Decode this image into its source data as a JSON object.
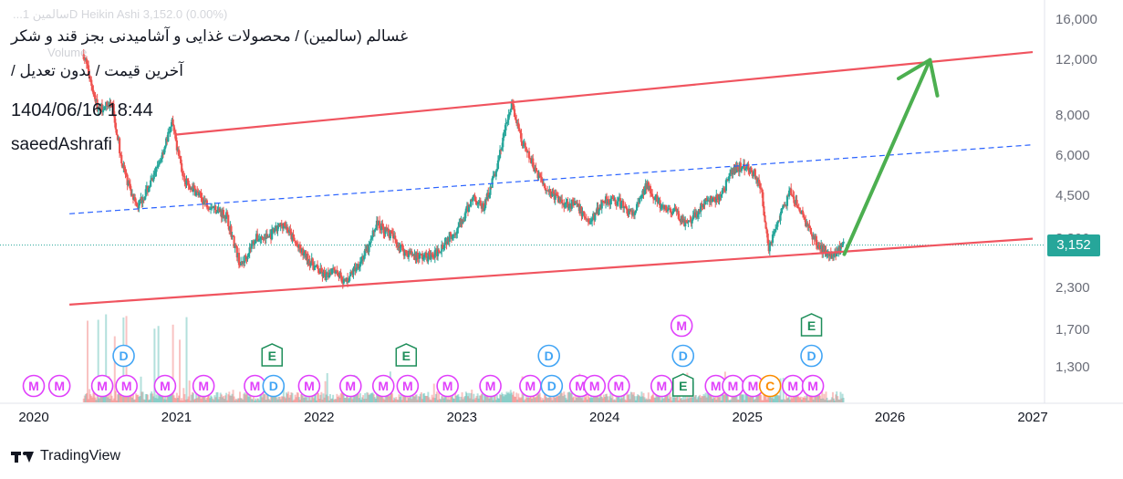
{
  "header": {
    "title": "غسالم (سالمین) / محصولات غذایی و آشامیدنی بجز قند و شکر",
    "subtitle": "آخرین قیمت / بدون تعدیل /",
    "datetime": "1404/06/16 18:44",
    "author": "saeedAshrafi",
    "ghost_legend": "...سالمین 1D  Heikin Ashi  3,152.0 (0.00%)",
    "ghost_volume": "Volume"
  },
  "branding": {
    "logo_text": "TradingView"
  },
  "colors": {
    "up": "#26a69a",
    "down": "#ef5350",
    "channel": "#f0545f",
    "midline": "#2962ff",
    "arrow": "#4caf50",
    "marker_m": "#e040fb",
    "marker_d": "#42a5f5",
    "marker_e": "#1e8e5a",
    "marker_c": "#fb8c00"
  },
  "chart_data": {
    "type": "candlestick",
    "scale": "log",
    "y_ticks": [
      "16,000",
      "12,000",
      "8,000",
      "6,000",
      "4,500",
      "3,300",
      "2,300",
      "1,700",
      "1,300"
    ],
    "y_tick_values": [
      16000,
      12000,
      8000,
      6000,
      4500,
      3300,
      2300,
      1700,
      1300
    ],
    "x_ticks": [
      "2020",
      "2021",
      "2022",
      "2023",
      "2024",
      "2025",
      "2026",
      "2027"
    ],
    "x_tick_values": [
      2020,
      2021,
      2022,
      2023,
      2024,
      2025,
      2026,
      2027
    ],
    "last_price": "3,152",
    "last_price_value": 3152,
    "price_path": [
      [
        2020.35,
        12500
      ],
      [
        2020.45,
        8400
      ],
      [
        2020.55,
        8800
      ],
      [
        2020.62,
        5600
      ],
      [
        2020.72,
        4100
      ],
      [
        2020.85,
        5200
      ],
      [
        2020.97,
        7600
      ],
      [
        2021.05,
        5100
      ],
      [
        2021.2,
        4300
      ],
      [
        2021.35,
        3900
      ],
      [
        2021.45,
        2700
      ],
      [
        2021.55,
        3300
      ],
      [
        2021.65,
        3350
      ],
      [
        2021.75,
        3700
      ],
      [
        2021.85,
        3100
      ],
      [
        2022.0,
        2600
      ],
      [
        2022.05,
        2500
      ],
      [
        2022.1,
        2700
      ],
      [
        2022.18,
        2400
      ],
      [
        2022.25,
        2650
      ],
      [
        2022.35,
        3100
      ],
      [
        2022.4,
        3700
      ],
      [
        2022.5,
        3400
      ],
      [
        2022.6,
        3000
      ],
      [
        2022.7,
        2900
      ],
      [
        2022.8,
        2900
      ],
      [
        2022.9,
        3300
      ],
      [
        2023.0,
        3700
      ],
      [
        2023.08,
        4500
      ],
      [
        2023.15,
        4100
      ],
      [
        2023.25,
        5600
      ],
      [
        2023.3,
        7200
      ],
      [
        2023.35,
        8700
      ],
      [
        2023.42,
        6600
      ],
      [
        2023.5,
        5600
      ],
      [
        2023.6,
        4700
      ],
      [
        2023.7,
        4300
      ],
      [
        2023.8,
        4200
      ],
      [
        2023.9,
        3700
      ],
      [
        2024.0,
        4400
      ],
      [
        2024.1,
        4300
      ],
      [
        2024.2,
        3900
      ],
      [
        2024.3,
        4900
      ],
      [
        2024.4,
        4100
      ],
      [
        2024.5,
        4000
      ],
      [
        2024.58,
        3600
      ],
      [
        2024.7,
        4300
      ],
      [
        2024.8,
        4400
      ],
      [
        2024.9,
        5400
      ],
      [
        2024.97,
        5600
      ],
      [
        2025.05,
        5300
      ],
      [
        2025.1,
        4600
      ],
      [
        2025.15,
        3100
      ],
      [
        2025.22,
        3800
      ],
      [
        2025.3,
        4600
      ],
      [
        2025.4,
        3800
      ],
      [
        2025.5,
        3100
      ],
      [
        2025.6,
        2950
      ],
      [
        2025.68,
        3152
      ]
    ],
    "channel_upper": [
      [
        2021.0,
        7000
      ],
      [
        2027.0,
        12700
      ]
    ],
    "channel_lower": [
      [
        2020.25,
        2050
      ],
      [
        2027.0,
        3300
      ]
    ],
    "midline": [
      [
        2020.25,
        3950
      ],
      [
        2027.0,
        6500
      ]
    ],
    "projection_arrow": [
      [
        2025.68,
        2950
      ],
      [
        2026.28,
        12000
      ]
    ],
    "event_markers": [
      {
        "t": "M",
        "x": 2020.0,
        "row": 0
      },
      {
        "t": "M",
        "x": 2020.18,
        "row": 0
      },
      {
        "t": "M",
        "x": 2020.48,
        "row": 0
      },
      {
        "t": "M",
        "x": 2020.65,
        "row": 0
      },
      {
        "t": "D",
        "x": 2020.63,
        "row": 1
      },
      {
        "t": "M",
        "x": 2020.92,
        "row": 0
      },
      {
        "t": "M",
        "x": 2021.19,
        "row": 0
      },
      {
        "t": "M",
        "x": 2021.55,
        "row": 0
      },
      {
        "t": "D",
        "x": 2021.68,
        "row": 0
      },
      {
        "t": "E",
        "x": 2021.67,
        "row": 1
      },
      {
        "t": "M",
        "x": 2021.93,
        "row": 0
      },
      {
        "t": "M",
        "x": 2022.22,
        "row": 0
      },
      {
        "t": "M",
        "x": 2022.45,
        "row": 0
      },
      {
        "t": "M",
        "x": 2022.62,
        "row": 0
      },
      {
        "t": "E",
        "x": 2022.61,
        "row": 1
      },
      {
        "t": "M",
        "x": 2022.9,
        "row": 0
      },
      {
        "t": "M",
        "x": 2023.2,
        "row": 0
      },
      {
        "t": "M",
        "x": 2023.48,
        "row": 0
      },
      {
        "t": "D",
        "x": 2023.63,
        "row": 0
      },
      {
        "t": "D",
        "x": 2023.61,
        "row": 1
      },
      {
        "t": "M",
        "x": 2023.83,
        "row": 0
      },
      {
        "t": "M",
        "x": 2023.93,
        "row": 0
      },
      {
        "t": "M",
        "x": 2024.1,
        "row": 0
      },
      {
        "t": "M",
        "x": 2024.4,
        "row": 0
      },
      {
        "t": "E",
        "x": 2024.55,
        "row": 0
      },
      {
        "t": "D",
        "x": 2024.55,
        "row": 1
      },
      {
        "t": "M",
        "x": 2024.54,
        "row": 2
      },
      {
        "t": "M",
        "x": 2024.78,
        "row": 0
      },
      {
        "t": "M",
        "x": 2024.9,
        "row": 0
      },
      {
        "t": "M",
        "x": 2025.04,
        "row": 0
      },
      {
        "t": "C",
        "x": 2025.16,
        "row": 0
      },
      {
        "t": "M",
        "x": 2025.32,
        "row": 0
      },
      {
        "t": "M",
        "x": 2025.46,
        "row": 0
      },
      {
        "t": "D",
        "x": 2025.45,
        "row": 1
      },
      {
        "t": "E",
        "x": 2025.45,
        "row": 2
      }
    ]
  }
}
